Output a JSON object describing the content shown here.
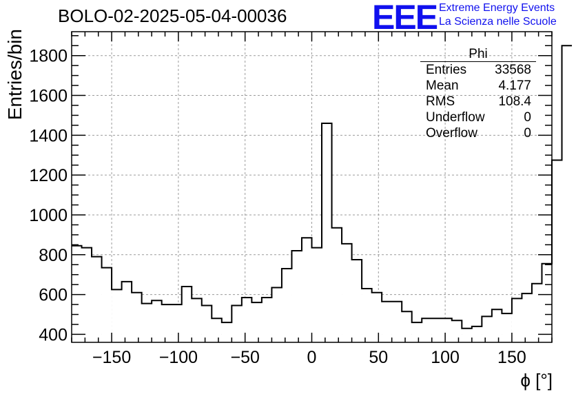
{
  "header": {
    "title": "BOLO-02-2025-05-04-00036",
    "logo_mark": "EEE",
    "logo_line1": "Extreme Energy Events",
    "logo_line2": "La Scienza nelle Scuole"
  },
  "stats_box": {
    "title": "Phi",
    "rows": [
      {
        "label": "Entries",
        "value": "33568"
      },
      {
        "label": "Mean",
        "value": "4.177"
      },
      {
        "label": "RMS",
        "value": "108.4"
      },
      {
        "label": "Underflow",
        "value": "0"
      },
      {
        "label": "Overflow",
        "value": "0"
      }
    ]
  },
  "colors": {
    "line": "#000000",
    "grid": "#9a9a9a",
    "logo": "#1010ee"
  },
  "chart_data": {
    "type": "bar",
    "style": "step-histogram",
    "title": "BOLO-02-2025-05-04-00036",
    "xlabel": "ϕ [°]",
    "ylabel": "Entries/bin",
    "xlim": [
      -180,
      180
    ],
    "ylim": [
      360,
      1920
    ],
    "xticks": [
      -150,
      -100,
      -50,
      0,
      50,
      100,
      150
    ],
    "xtick_labels": [
      "−150",
      "−100",
      "−50",
      "0",
      "50",
      "100",
      "150"
    ],
    "yticks": [
      400,
      600,
      800,
      1000,
      1200,
      1400,
      1600,
      1800
    ],
    "grid": true,
    "bin_width": 7.5,
    "bin_edges_start": -180,
    "values": [
      845,
      835,
      790,
      735,
      625,
      665,
      610,
      555,
      570,
      550,
      550,
      640,
      580,
      545,
      480,
      460,
      545,
      585,
      560,
      585,
      635,
      730,
      820,
      885,
      835,
      1460,
      935,
      855,
      775,
      630,
      610,
      565,
      565,
      515,
      460,
      480,
      480,
      480,
      470,
      430,
      440,
      490,
      525,
      505,
      580,
      605,
      655,
      755,
      1275,
      1850
    ]
  }
}
